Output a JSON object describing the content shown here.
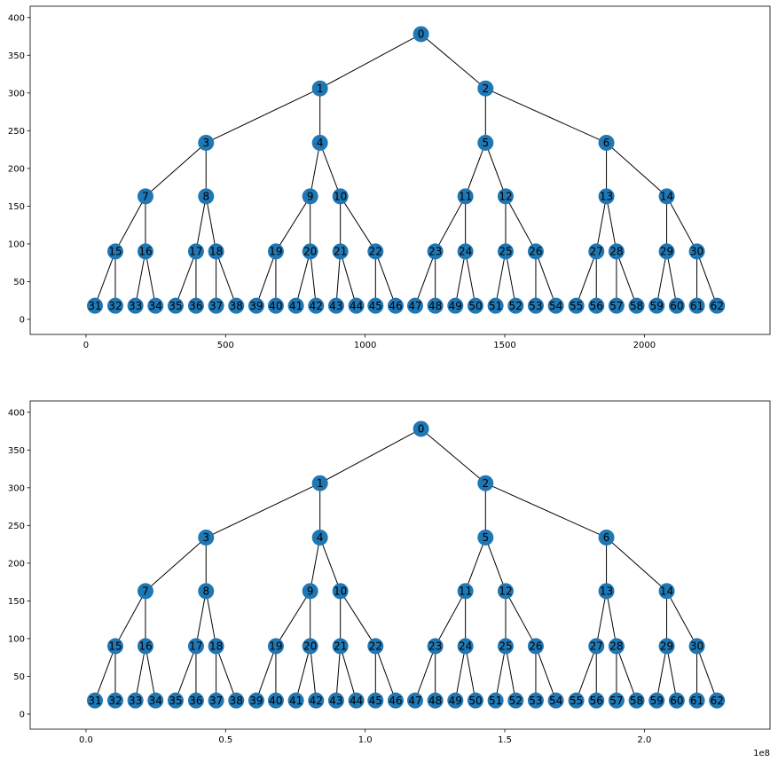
{
  "chart_data": [
    {
      "type": "tree",
      "title": "",
      "xlabel": "",
      "ylabel": "",
      "x_offset_label": "",
      "xlim": [
        -200,
        2450
      ],
      "ylim": [
        -20,
        415
      ],
      "xticks": [
        0,
        500,
        1000,
        1500,
        2000
      ],
      "xtick_labels": [
        "0",
        "500",
        "1000",
        "1500",
        "2000"
      ],
      "yticks": [
        0,
        50,
        100,
        150,
        200,
        250,
        300,
        350,
        400
      ],
      "ytick_labels": [
        "0",
        "50",
        "100",
        "150",
        "200",
        "250",
        "300",
        "350",
        "400"
      ],
      "node_color": "#1f77b4",
      "edge_color": "#000000",
      "nodes": [
        {
          "id": "0",
          "x": 1200,
          "y": 378
        },
        {
          "id": "1",
          "x": 838,
          "y": 306
        },
        {
          "id": "2",
          "x": 1431,
          "y": 306
        },
        {
          "id": "3",
          "x": 430,
          "y": 234
        },
        {
          "id": "4",
          "x": 838,
          "y": 234
        },
        {
          "id": "5",
          "x": 1431,
          "y": 234
        },
        {
          "id": "6",
          "x": 1864,
          "y": 234
        },
        {
          "id": "7",
          "x": 213,
          "y": 163
        },
        {
          "id": "8",
          "x": 430,
          "y": 163
        },
        {
          "id": "9",
          "x": 803,
          "y": 163
        },
        {
          "id": "10",
          "x": 911,
          "y": 163
        },
        {
          "id": "11",
          "x": 1359,
          "y": 163
        },
        {
          "id": "12",
          "x": 1503,
          "y": 163
        },
        {
          "id": "13",
          "x": 1864,
          "y": 163
        },
        {
          "id": "14",
          "x": 2080,
          "y": 163
        },
        {
          "id": "15",
          "x": 105,
          "y": 90
        },
        {
          "id": "16",
          "x": 213,
          "y": 90
        },
        {
          "id": "17",
          "x": 394,
          "y": 90
        },
        {
          "id": "18",
          "x": 466,
          "y": 90
        },
        {
          "id": "19",
          "x": 680,
          "y": 90
        },
        {
          "id": "20",
          "x": 803,
          "y": 90
        },
        {
          "id": "21",
          "x": 911,
          "y": 90
        },
        {
          "id": "22",
          "x": 1037,
          "y": 90
        },
        {
          "id": "23",
          "x": 1251,
          "y": 90
        },
        {
          "id": "24",
          "x": 1359,
          "y": 90
        },
        {
          "id": "25",
          "x": 1503,
          "y": 90
        },
        {
          "id": "26",
          "x": 1611,
          "y": 90
        },
        {
          "id": "27",
          "x": 1828,
          "y": 90
        },
        {
          "id": "28",
          "x": 1900,
          "y": 90
        },
        {
          "id": "29",
          "x": 2080,
          "y": 90
        },
        {
          "id": "30",
          "x": 2188,
          "y": 90
        },
        {
          "id": "31",
          "x": 32,
          "y": 18
        },
        {
          "id": "32",
          "x": 105,
          "y": 18
        },
        {
          "id": "33",
          "x": 177,
          "y": 18
        },
        {
          "id": "34",
          "x": 249,
          "y": 18
        },
        {
          "id": "35",
          "x": 321,
          "y": 18
        },
        {
          "id": "36",
          "x": 394,
          "y": 18
        },
        {
          "id": "37",
          "x": 466,
          "y": 18
        },
        {
          "id": "38",
          "x": 538,
          "y": 18
        },
        {
          "id": "39",
          "x": 610,
          "y": 18
        },
        {
          "id": "40",
          "x": 680,
          "y": 18
        },
        {
          "id": "41",
          "x": 752,
          "y": 18
        },
        {
          "id": "42",
          "x": 824,
          "y": 18
        },
        {
          "id": "43",
          "x": 896,
          "y": 18
        },
        {
          "id": "44",
          "x": 968,
          "y": 18
        },
        {
          "id": "45",
          "x": 1037,
          "y": 18
        },
        {
          "id": "46",
          "x": 1109,
          "y": 18
        },
        {
          "id": "47",
          "x": 1179,
          "y": 18
        },
        {
          "id": "48",
          "x": 1251,
          "y": 18
        },
        {
          "id": "49",
          "x": 1323,
          "y": 18
        },
        {
          "id": "50",
          "x": 1395,
          "y": 18
        },
        {
          "id": "51",
          "x": 1467,
          "y": 18
        },
        {
          "id": "52",
          "x": 1539,
          "y": 18
        },
        {
          "id": "53",
          "x": 1611,
          "y": 18
        },
        {
          "id": "54",
          "x": 1683,
          "y": 18
        },
        {
          "id": "55",
          "x": 1756,
          "y": 18
        },
        {
          "id": "56",
          "x": 1828,
          "y": 18
        },
        {
          "id": "57",
          "x": 1900,
          "y": 18
        },
        {
          "id": "58",
          "x": 1972,
          "y": 18
        },
        {
          "id": "59",
          "x": 2044,
          "y": 18
        },
        {
          "id": "60",
          "x": 2116,
          "y": 18
        },
        {
          "id": "61",
          "x": 2188,
          "y": 18
        },
        {
          "id": "62",
          "x": 2260,
          "y": 18
        }
      ],
      "edges": [
        [
          "0",
          "1"
        ],
        [
          "0",
          "2"
        ],
        [
          "1",
          "3"
        ],
        [
          "1",
          "4"
        ],
        [
          "2",
          "5"
        ],
        [
          "2",
          "6"
        ],
        [
          "3",
          "7"
        ],
        [
          "3",
          "8"
        ],
        [
          "4",
          "9"
        ],
        [
          "4",
          "10"
        ],
        [
          "5",
          "11"
        ],
        [
          "5",
          "12"
        ],
        [
          "6",
          "13"
        ],
        [
          "6",
          "14"
        ],
        [
          "7",
          "15"
        ],
        [
          "7",
          "16"
        ],
        [
          "8",
          "17"
        ],
        [
          "8",
          "18"
        ],
        [
          "9",
          "19"
        ],
        [
          "9",
          "20"
        ],
        [
          "10",
          "21"
        ],
        [
          "10",
          "22"
        ],
        [
          "11",
          "23"
        ],
        [
          "11",
          "24"
        ],
        [
          "12",
          "25"
        ],
        [
          "12",
          "26"
        ],
        [
          "13",
          "27"
        ],
        [
          "13",
          "28"
        ],
        [
          "14",
          "29"
        ],
        [
          "14",
          "30"
        ],
        [
          "15",
          "31"
        ],
        [
          "15",
          "32"
        ],
        [
          "16",
          "33"
        ],
        [
          "16",
          "34"
        ],
        [
          "17",
          "35"
        ],
        [
          "17",
          "36"
        ],
        [
          "18",
          "37"
        ],
        [
          "18",
          "38"
        ],
        [
          "19",
          "39"
        ],
        [
          "19",
          "40"
        ],
        [
          "20",
          "41"
        ],
        [
          "20",
          "42"
        ],
        [
          "21",
          "43"
        ],
        [
          "21",
          "44"
        ],
        [
          "22",
          "45"
        ],
        [
          "22",
          "46"
        ],
        [
          "23",
          "47"
        ],
        [
          "23",
          "48"
        ],
        [
          "24",
          "49"
        ],
        [
          "24",
          "50"
        ],
        [
          "25",
          "51"
        ],
        [
          "25",
          "52"
        ],
        [
          "26",
          "53"
        ],
        [
          "26",
          "54"
        ],
        [
          "27",
          "55"
        ],
        [
          "27",
          "56"
        ],
        [
          "28",
          "57"
        ],
        [
          "28",
          "58"
        ],
        [
          "29",
          "59"
        ],
        [
          "29",
          "60"
        ],
        [
          "30",
          "61"
        ],
        [
          "30",
          "62"
        ]
      ]
    },
    {
      "type": "tree",
      "title": "",
      "xlabel": "",
      "ylabel": "",
      "x_offset_label": "1e8",
      "xlim": [
        -0.2,
        2.45
      ],
      "ylim": [
        -20,
        415
      ],
      "xticks": [
        0,
        0.5,
        1.0,
        1.5,
        2.0
      ],
      "xtick_labels": [
        "0.0",
        "0.5",
        "1.0",
        "1.5",
        "2.0"
      ],
      "yticks": [
        0,
        50,
        100,
        150,
        200,
        250,
        300,
        350,
        400
      ],
      "ytick_labels": [
        "0",
        "50",
        "100",
        "150",
        "200",
        "250",
        "300",
        "350",
        "400"
      ],
      "node_color": "#1f77b4",
      "edge_color": "#000000",
      "nodes": [
        {
          "id": "0",
          "x": 1.2,
          "y": 378
        },
        {
          "id": "1",
          "x": 0.838,
          "y": 306
        },
        {
          "id": "2",
          "x": 1.431,
          "y": 306
        },
        {
          "id": "3",
          "x": 0.43,
          "y": 234
        },
        {
          "id": "4",
          "x": 0.838,
          "y": 234
        },
        {
          "id": "5",
          "x": 1.431,
          "y": 234
        },
        {
          "id": "6",
          "x": 1.864,
          "y": 234
        },
        {
          "id": "7",
          "x": 0.213,
          "y": 163
        },
        {
          "id": "8",
          "x": 0.43,
          "y": 163
        },
        {
          "id": "9",
          "x": 0.803,
          "y": 163
        },
        {
          "id": "10",
          "x": 0.911,
          "y": 163
        },
        {
          "id": "11",
          "x": 1.359,
          "y": 163
        },
        {
          "id": "12",
          "x": 1.503,
          "y": 163
        },
        {
          "id": "13",
          "x": 1.864,
          "y": 163
        },
        {
          "id": "14",
          "x": 2.08,
          "y": 163
        },
        {
          "id": "15",
          "x": 0.105,
          "y": 90
        },
        {
          "id": "16",
          "x": 0.213,
          "y": 90
        },
        {
          "id": "17",
          "x": 0.394,
          "y": 90
        },
        {
          "id": "18",
          "x": 0.466,
          "y": 90
        },
        {
          "id": "19",
          "x": 0.68,
          "y": 90
        },
        {
          "id": "20",
          "x": 0.803,
          "y": 90
        },
        {
          "id": "21",
          "x": 0.911,
          "y": 90
        },
        {
          "id": "22",
          "x": 1.037,
          "y": 90
        },
        {
          "id": "23",
          "x": 1.251,
          "y": 90
        },
        {
          "id": "24",
          "x": 1.359,
          "y": 90
        },
        {
          "id": "25",
          "x": 1.503,
          "y": 90
        },
        {
          "id": "26",
          "x": 1.611,
          "y": 90
        },
        {
          "id": "27",
          "x": 1.828,
          "y": 90
        },
        {
          "id": "28",
          "x": 1.9,
          "y": 90
        },
        {
          "id": "29",
          "x": 2.08,
          "y": 90
        },
        {
          "id": "30",
          "x": 2.188,
          "y": 90
        },
        {
          "id": "31",
          "x": 0.032,
          "y": 18
        },
        {
          "id": "32",
          "x": 0.105,
          "y": 18
        },
        {
          "id": "33",
          "x": 0.177,
          "y": 18
        },
        {
          "id": "34",
          "x": 0.249,
          "y": 18
        },
        {
          "id": "35",
          "x": 0.321,
          "y": 18
        },
        {
          "id": "36",
          "x": 0.394,
          "y": 18
        },
        {
          "id": "37",
          "x": 0.466,
          "y": 18
        },
        {
          "id": "38",
          "x": 0.538,
          "y": 18
        },
        {
          "id": "39",
          "x": 0.61,
          "y": 18
        },
        {
          "id": "40",
          "x": 0.68,
          "y": 18
        },
        {
          "id": "41",
          "x": 0.752,
          "y": 18
        },
        {
          "id": "42",
          "x": 0.824,
          "y": 18
        },
        {
          "id": "43",
          "x": 0.896,
          "y": 18
        },
        {
          "id": "44",
          "x": 0.968,
          "y": 18
        },
        {
          "id": "45",
          "x": 1.037,
          "y": 18
        },
        {
          "id": "46",
          "x": 1.109,
          "y": 18
        },
        {
          "id": "47",
          "x": 1.179,
          "y": 18
        },
        {
          "id": "48",
          "x": 1.251,
          "y": 18
        },
        {
          "id": "49",
          "x": 1.323,
          "y": 18
        },
        {
          "id": "50",
          "x": 1.395,
          "y": 18
        },
        {
          "id": "51",
          "x": 1.467,
          "y": 18
        },
        {
          "id": "52",
          "x": 1.539,
          "y": 18
        },
        {
          "id": "53",
          "x": 1.611,
          "y": 18
        },
        {
          "id": "54",
          "x": 1.683,
          "y": 18
        },
        {
          "id": "55",
          "x": 1.756,
          "y": 18
        },
        {
          "id": "56",
          "x": 1.828,
          "y": 18
        },
        {
          "id": "57",
          "x": 1.9,
          "y": 18
        },
        {
          "id": "58",
          "x": 1.972,
          "y": 18
        },
        {
          "id": "59",
          "x": 2.044,
          "y": 18
        },
        {
          "id": "60",
          "x": 2.116,
          "y": 18
        },
        {
          "id": "61",
          "x": 2.188,
          "y": 18
        },
        {
          "id": "62",
          "x": 2.26,
          "y": 18
        }
      ],
      "edges": [
        [
          "0",
          "1"
        ],
        [
          "0",
          "2"
        ],
        [
          "1",
          "3"
        ],
        [
          "1",
          "4"
        ],
        [
          "2",
          "5"
        ],
        [
          "2",
          "6"
        ],
        [
          "3",
          "7"
        ],
        [
          "3",
          "8"
        ],
        [
          "4",
          "9"
        ],
        [
          "4",
          "10"
        ],
        [
          "5",
          "11"
        ],
        [
          "5",
          "12"
        ],
        [
          "6",
          "13"
        ],
        [
          "6",
          "14"
        ],
        [
          "7",
          "15"
        ],
        [
          "7",
          "16"
        ],
        [
          "8",
          "17"
        ],
        [
          "8",
          "18"
        ],
        [
          "9",
          "19"
        ],
        [
          "9",
          "20"
        ],
        [
          "10",
          "21"
        ],
        [
          "10",
          "22"
        ],
        [
          "11",
          "23"
        ],
        [
          "11",
          "24"
        ],
        [
          "12",
          "25"
        ],
        [
          "12",
          "26"
        ],
        [
          "13",
          "27"
        ],
        [
          "13",
          "28"
        ],
        [
          "14",
          "29"
        ],
        [
          "14",
          "30"
        ],
        [
          "15",
          "31"
        ],
        [
          "15",
          "32"
        ],
        [
          "16",
          "33"
        ],
        [
          "16",
          "34"
        ],
        [
          "17",
          "35"
        ],
        [
          "17",
          "36"
        ],
        [
          "18",
          "37"
        ],
        [
          "18",
          "38"
        ],
        [
          "19",
          "39"
        ],
        [
          "19",
          "40"
        ],
        [
          "20",
          "41"
        ],
        [
          "20",
          "42"
        ],
        [
          "21",
          "43"
        ],
        [
          "21",
          "44"
        ],
        [
          "22",
          "45"
        ],
        [
          "22",
          "46"
        ],
        [
          "23",
          "47"
        ],
        [
          "23",
          "48"
        ],
        [
          "24",
          "49"
        ],
        [
          "24",
          "50"
        ],
        [
          "25",
          "51"
        ],
        [
          "25",
          "52"
        ],
        [
          "26",
          "53"
        ],
        [
          "26",
          "54"
        ],
        [
          "27",
          "55"
        ],
        [
          "27",
          "56"
        ],
        [
          "28",
          "57"
        ],
        [
          "28",
          "58"
        ],
        [
          "29",
          "59"
        ],
        [
          "29",
          "60"
        ],
        [
          "30",
          "61"
        ],
        [
          "30",
          "62"
        ]
      ]
    }
  ]
}
